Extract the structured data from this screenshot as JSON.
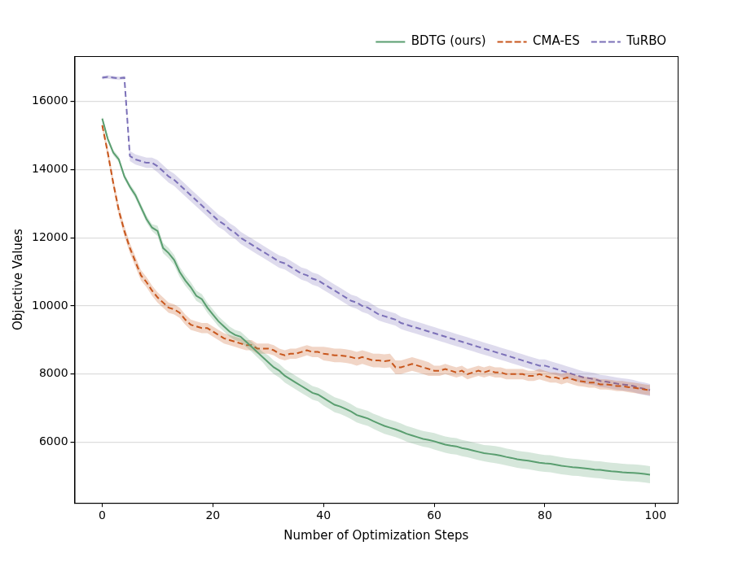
{
  "chart_data": {
    "type": "line",
    "x_label": "Number of Optimization Steps",
    "y_label": "Objective Values",
    "x": [
      0,
      1,
      2,
      3,
      4,
      5,
      6,
      7,
      8,
      9,
      10,
      11,
      12,
      13,
      14,
      15,
      16,
      17,
      18,
      19,
      20,
      21,
      22,
      23,
      24,
      25,
      26,
      27,
      28,
      29,
      30,
      31,
      32,
      33,
      34,
      35,
      36,
      37,
      38,
      39,
      40,
      41,
      42,
      43,
      44,
      45,
      46,
      47,
      48,
      49,
      50,
      51,
      52,
      53,
      54,
      55,
      56,
      57,
      58,
      59,
      60,
      61,
      62,
      63,
      64,
      65,
      66,
      67,
      68,
      69,
      70,
      71,
      72,
      73,
      74,
      75,
      76,
      77,
      78,
      79,
      80,
      81,
      82,
      83,
      84,
      85,
      86,
      87,
      88,
      89,
      90,
      91,
      92,
      93,
      94,
      95,
      96,
      97,
      98,
      99
    ],
    "xlim": [
      -5,
      104
    ],
    "xticks": [
      0,
      20,
      40,
      60,
      80,
      100
    ],
    "ylim": [
      4220,
      17330
    ],
    "yticks": [
      6000,
      8000,
      10000,
      12000,
      14000,
      16000
    ],
    "grid": "y",
    "legend": "upper right",
    "series": [
      {
        "name": "BDTG (ours)",
        "color": "#5a9e70",
        "line_style": "solid",
        "values": [
          15500,
          14900,
          14500,
          14300,
          13800,
          13500,
          13250,
          12900,
          12550,
          12300,
          12200,
          11700,
          11550,
          11350,
          11000,
          10750,
          10550,
          10300,
          10200,
          9950,
          9750,
          9550,
          9400,
          9250,
          9150,
          9100,
          8950,
          8800,
          8650,
          8500,
          8350,
          8200,
          8100,
          7950,
          7850,
          7750,
          7650,
          7550,
          7450,
          7400,
          7300,
          7200,
          7100,
          7050,
          6980,
          6900,
          6800,
          6750,
          6700,
          6620,
          6550,
          6480,
          6430,
          6380,
          6320,
          6250,
          6200,
          6150,
          6100,
          6070,
          6030,
          5980,
          5930,
          5900,
          5880,
          5830,
          5800,
          5760,
          5720,
          5680,
          5660,
          5640,
          5610,
          5570,
          5540,
          5500,
          5480,
          5460,
          5430,
          5400,
          5380,
          5370,
          5340,
          5310,
          5290,
          5270,
          5260,
          5240,
          5220,
          5200,
          5190,
          5170,
          5150,
          5140,
          5120,
          5110,
          5100,
          5090,
          5070,
          5050
        ],
        "error": [
          80,
          80,
          80,
          80,
          80,
          80,
          100,
          100,
          100,
          100,
          150,
          150,
          150,
          150,
          150,
          150,
          150,
          150,
          150,
          150,
          150,
          150,
          150,
          150,
          150,
          150,
          150,
          150,
          150,
          150,
          200,
          200,
          200,
          200,
          200,
          200,
          200,
          200,
          200,
          200,
          220,
          220,
          220,
          220,
          220,
          220,
          220,
          220,
          220,
          220,
          230,
          230,
          230,
          230,
          230,
          230,
          230,
          230,
          230,
          230,
          240,
          240,
          240,
          240,
          240,
          240,
          240,
          240,
          240,
          240,
          250,
          250,
          250,
          250,
          250,
          250,
          250,
          250,
          250,
          250,
          250,
          250,
          250,
          250,
          250,
          250,
          250,
          250,
          250,
          250,
          250,
          250,
          250,
          250,
          250,
          250,
          250,
          250,
          250,
          250
        ]
      },
      {
        "name": "CMA-ES",
        "color": "#c8561c",
        "line_style": "dashed",
        "values": [
          15300,
          14500,
          13600,
          12800,
          12200,
          11700,
          11300,
          10900,
          10700,
          10450,
          10250,
          10100,
          9950,
          9900,
          9800,
          9600,
          9450,
          9400,
          9350,
          9350,
          9250,
          9150,
          9050,
          9000,
          8950,
          8900,
          8850,
          8850,
          8750,
          8750,
          8750,
          8700,
          8600,
          8550,
          8600,
          8600,
          8650,
          8700,
          8650,
          8650,
          8600,
          8580,
          8550,
          8550,
          8530,
          8500,
          8450,
          8500,
          8450,
          8400,
          8400,
          8380,
          8400,
          8200,
          8200,
          8250,
          8300,
          8250,
          8200,
          8150,
          8100,
          8100,
          8150,
          8100,
          8050,
          8100,
          8000,
          8050,
          8100,
          8050,
          8100,
          8050,
          8050,
          8000,
          8000,
          8000,
          8000,
          7950,
          7950,
          8000,
          7950,
          7900,
          7900,
          7850,
          7900,
          7850,
          7800,
          7780,
          7750,
          7750,
          7700,
          7700,
          7680,
          7650,
          7650,
          7620,
          7600,
          7580,
          7550,
          7530
        ],
        "error": [
          100,
          150,
          150,
          150,
          150,
          150,
          150,
          150,
          150,
          150,
          150,
          150,
          150,
          150,
          150,
          150,
          150,
          150,
          150,
          150,
          150,
          150,
          150,
          150,
          150,
          150,
          150,
          150,
          150,
          150,
          150,
          150,
          150,
          150,
          150,
          150,
          150,
          150,
          150,
          150,
          200,
          200,
          200,
          200,
          200,
          200,
          200,
          200,
          200,
          200,
          200,
          200,
          200,
          200,
          200,
          200,
          200,
          200,
          200,
          200,
          150,
          150,
          150,
          150,
          150,
          150,
          150,
          150,
          150,
          150,
          150,
          150,
          150,
          150,
          150,
          150,
          150,
          150,
          150,
          150,
          150,
          150,
          150,
          150,
          150,
          150,
          150,
          150,
          150,
          150,
          150,
          150,
          150,
          150,
          150,
          150,
          150,
          150,
          150,
          150
        ]
      },
      {
        "name": "TuRBO",
        "color": "#7b70b8",
        "line_style": "dashed",
        "values": [
          16700,
          16720,
          16700,
          16680,
          16700,
          14400,
          14300,
          14250,
          14200,
          14200,
          14100,
          13950,
          13800,
          13700,
          13550,
          13400,
          13250,
          13100,
          12950,
          12800,
          12650,
          12500,
          12400,
          12250,
          12150,
          12000,
          11900,
          11800,
          11700,
          11600,
          11500,
          11400,
          11300,
          11250,
          11150,
          11050,
          10950,
          10900,
          10800,
          10750,
          10650,
          10550,
          10450,
          10350,
          10250,
          10150,
          10100,
          10000,
          9950,
          9850,
          9750,
          9700,
          9650,
          9600,
          9500,
          9450,
          9400,
          9350,
          9300,
          9250,
          9200,
          9150,
          9100,
          9050,
          9000,
          8950,
          8900,
          8850,
          8800,
          8750,
          8700,
          8650,
          8600,
          8550,
          8500,
          8450,
          8400,
          8350,
          8300,
          8250,
          8250,
          8200,
          8150,
          8100,
          8050,
          8000,
          7950,
          7900,
          7880,
          7850,
          7800,
          7780,
          7750,
          7720,
          7700,
          7680,
          7650,
          7600,
          7570,
          7530
        ],
        "error": [
          50,
          50,
          50,
          50,
          50,
          150,
          150,
          150,
          150,
          150,
          180,
          180,
          180,
          180,
          180,
          180,
          180,
          180,
          180,
          180,
          180,
          180,
          180,
          180,
          180,
          180,
          180,
          180,
          180,
          180,
          180,
          180,
          180,
          180,
          180,
          180,
          180,
          180,
          180,
          180,
          180,
          180,
          180,
          180,
          180,
          180,
          180,
          180,
          180,
          180,
          180,
          180,
          180,
          180,
          180,
          180,
          180,
          180,
          180,
          180,
          180,
          180,
          180,
          180,
          180,
          180,
          180,
          180,
          180,
          180,
          180,
          180,
          180,
          180,
          180,
          180,
          180,
          180,
          180,
          180,
          180,
          180,
          180,
          180,
          180,
          180,
          180,
          180,
          180,
          180,
          180,
          180,
          180,
          180,
          180,
          180,
          180,
          180,
          180,
          180
        ]
      }
    ]
  }
}
